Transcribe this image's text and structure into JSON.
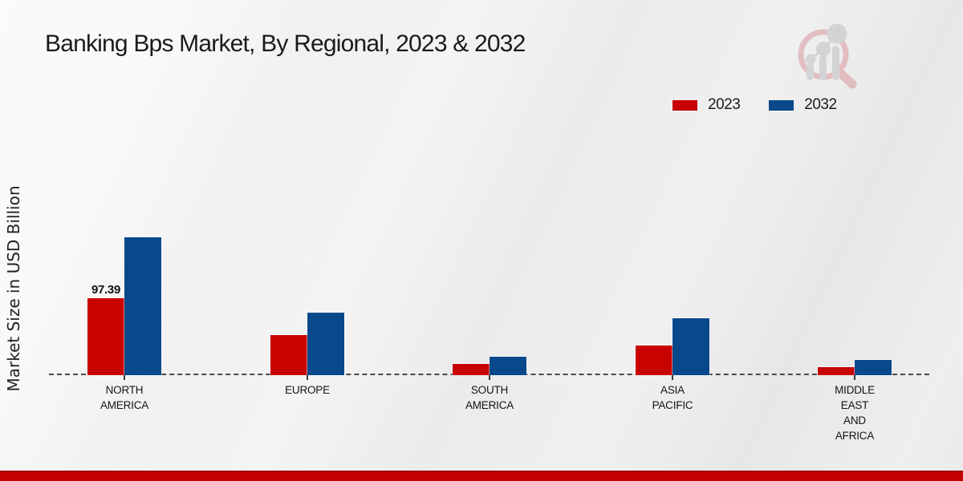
{
  "header": {
    "title": "Banking Bps Market, By Regional, 2023 & 2032"
  },
  "colors": {
    "series_2023": "#c80101",
    "series_2032": "#07498a",
    "bottom_strip": "#c30101",
    "baseline": "#4a4a4a",
    "text": "#1b1b1b"
  },
  "chart_data": {
    "type": "bar",
    "title": "Banking Bps Market, By Regional, 2023 & 2032",
    "xlabel": "",
    "ylabel": "Market Size in USD Billion",
    "categories": [
      "NORTH AMERICA",
      "EUROPE",
      "SOUTH AMERICA",
      "ASIA PACIFIC",
      "MIDDLE EAST AND AFRICA"
    ],
    "series": [
      {
        "name": "2023",
        "color": "#c80101",
        "values": [
          97.39,
          50,
          14.3,
          37,
          10.3
        ]
      },
      {
        "name": "2032",
        "color": "#07498a",
        "values": [
          174,
          79,
          23.7,
          72,
          19.4
        ]
      }
    ],
    "data_labels": [
      {
        "series_index": 0,
        "category_index": 0,
        "text": "97.39"
      }
    ],
    "ylim": [
      0,
      200
    ],
    "grid": false,
    "axis_style": "dashed-baseline-only",
    "legend_position": "top-right",
    "note": "Only the 97.39 value is labeled on the chart; other values estimated from bar heights."
  }
}
